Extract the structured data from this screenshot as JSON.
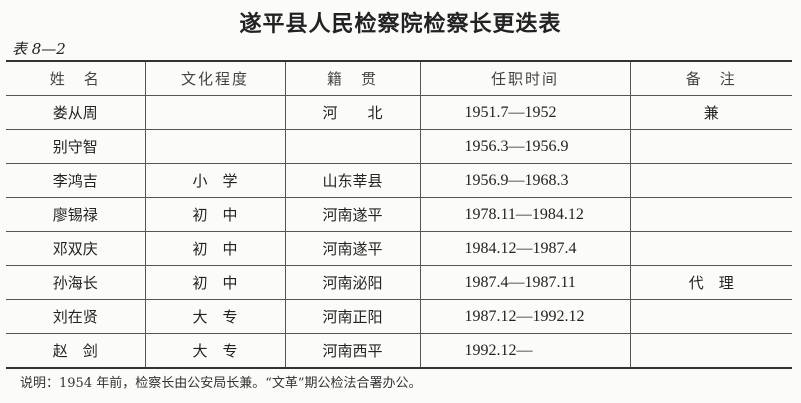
{
  "title": "遂平县人民检察院检察长更迭表",
  "table_number": "表 8—2",
  "table": {
    "headers": [
      "姓　名",
      "文化程度",
      "籍　贯",
      "任职时间",
      "备　注"
    ],
    "rows": [
      [
        "娄从周",
        "",
        "河　　北",
        "1951.7—1952",
        "兼"
      ],
      [
        "别守智",
        "",
        "",
        "1956.3—1956.9",
        ""
      ],
      [
        "李鸿吉",
        "小　学",
        "山东莘县",
        "1956.9—1968.3",
        ""
      ],
      [
        "廖锡禄",
        "初　中",
        "河南遂平",
        "1978.11—1984.12",
        ""
      ],
      [
        "邓双庆",
        "初　中",
        "河南遂平",
        "1984.12—1987.4",
        ""
      ],
      [
        "孙海长",
        "初　中",
        "河南泌阳",
        "1987.4—1987.11",
        "代　理"
      ],
      [
        "刘在贤",
        "大　专",
        "河南正阳",
        "1987.12—1992.12",
        ""
      ],
      [
        "赵　剑",
        "大　专",
        "河南西平",
        "1992.12—",
        ""
      ]
    ]
  },
  "note": "说明：1954 年前，检察长由公安局长兼。“文革”期公检法合署办公。"
}
